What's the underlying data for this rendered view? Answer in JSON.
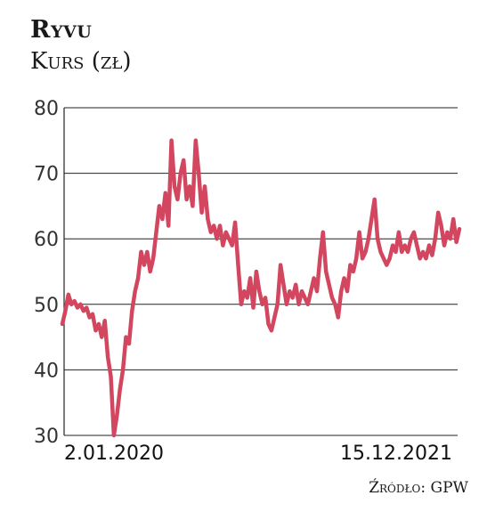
{
  "header": {
    "title": "Ryvu",
    "subtitle": "Kurs (zł)"
  },
  "source": "Źródło: GPW",
  "colors": {
    "line": "#d2465f",
    "grid": "#222222",
    "axis": "#222222"
  },
  "chart_data": {
    "type": "line",
    "title": "Ryvu",
    "ylabel": "Kurs (zł)",
    "ylim": [
      30,
      80
    ],
    "yticks": [
      30,
      40,
      50,
      60,
      70,
      80
    ],
    "xlim": [
      "2020-01-02",
      "2021-12-15"
    ],
    "x_labels": [
      "2.01.2020",
      "15.12.2021"
    ],
    "grid": "horizontal",
    "series": [
      {
        "values": [
          47,
          49,
          51.5,
          50,
          50.5,
          49.5,
          50,
          49,
          49.5,
          48,
          48.5,
          46,
          47,
          45,
          47.5,
          42,
          39,
          30,
          33,
          37,
          40,
          45,
          44,
          49,
          52,
          54,
          58,
          56,
          58,
          55,
          57,
          61,
          65,
          63,
          67,
          62,
          75,
          68,
          66,
          70,
          72,
          66,
          68,
          65,
          75,
          70,
          64,
          68,
          63,
          61,
          62,
          60,
          62,
          59,
          61,
          60,
          59,
          62.5,
          56,
          50,
          52,
          51,
          54,
          49.5,
          55,
          52,
          50,
          51,
          47,
          46,
          48,
          50,
          56,
          53,
          50,
          52,
          51,
          53,
          50,
          52,
          51,
          50,
          52,
          54,
          52,
          57,
          61,
          55,
          53,
          51,
          50,
          48,
          52,
          54,
          52,
          56,
          55,
          57,
          61,
          57,
          58,
          60,
          63,
          66,
          60,
          58,
          57,
          56,
          57,
          59,
          58,
          61,
          58,
          59,
          58,
          60,
          61,
          59,
          57,
          58,
          57,
          59,
          57.5,
          60,
          64,
          62,
          59,
          61,
          60,
          63,
          59.5,
          61.5
        ]
      }
    ]
  }
}
